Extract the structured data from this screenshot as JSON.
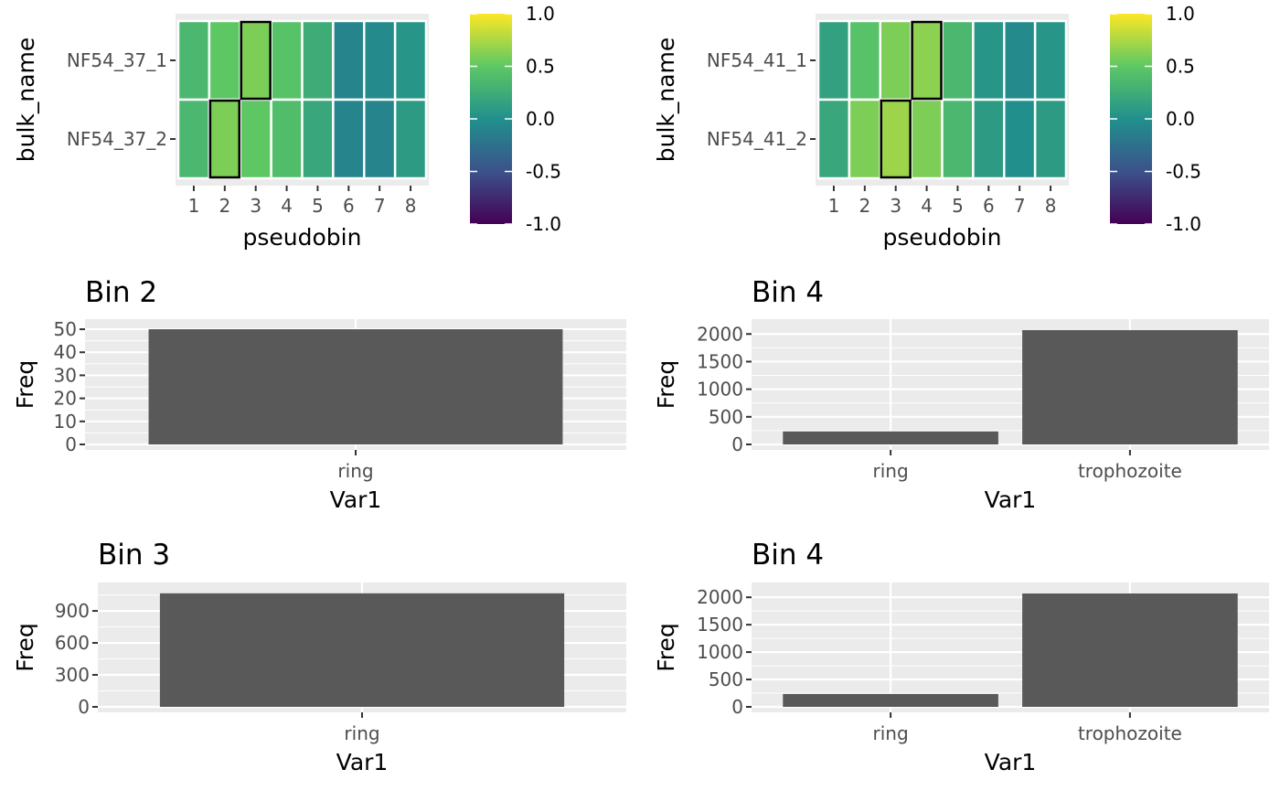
{
  "colors": {
    "panel_bg": "#EBEBEB",
    "gridline": "#FFFFFF",
    "bar_fill": "#595959",
    "tick_text": "#4D4D4D",
    "highlight_border": "#000000",
    "viridis": [
      "#440154",
      "#3B528B",
      "#21908C",
      "#5DC863",
      "#FDE725"
    ]
  },
  "chart_data": [
    {
      "type": "heatmap",
      "xlabel": "pseudobin",
      "ylabel": "bulk_name",
      "x": [
        "1",
        "2",
        "3",
        "4",
        "5",
        "6",
        "7",
        "8"
      ],
      "y": [
        "NF54_37_1",
        "NF54_37_2"
      ],
      "values": [
        [
          0.35,
          0.5,
          0.6,
          0.45,
          0.25,
          -0.1,
          -0.05,
          0.05
        ],
        [
          0.35,
          0.6,
          0.5,
          0.4,
          0.2,
          -0.1,
          -0.1,
          0.1
        ]
      ],
      "highlighted": [
        [
          0,
          2
        ],
        [
          1,
          1
        ]
      ],
      "color_scale": {
        "name": "viridis",
        "min": -1.0,
        "max": 1.0,
        "ticks": [
          "1.0",
          "0.5",
          "0.0",
          "-0.5",
          "-1.0"
        ]
      }
    },
    {
      "type": "heatmap",
      "xlabel": "pseudobin",
      "ylabel": "bulk_name",
      "x": [
        "1",
        "2",
        "3",
        "4",
        "5",
        "6",
        "7",
        "8"
      ],
      "y": [
        "NF54_41_1",
        "NF54_41_2"
      ],
      "values": [
        [
          0.15,
          0.45,
          0.6,
          0.65,
          0.35,
          0.05,
          -0.05,
          0.05
        ],
        [
          0.2,
          0.6,
          0.7,
          0.6,
          0.35,
          0.1,
          0.0,
          0.1
        ]
      ],
      "highlighted": [
        [
          0,
          3
        ],
        [
          1,
          2
        ]
      ],
      "color_scale": {
        "name": "viridis",
        "min": -1.0,
        "max": 1.0,
        "ticks": [
          "1.0",
          "0.5",
          "0.0",
          "-0.5",
          "-1.0"
        ]
      }
    },
    {
      "type": "bar",
      "title": "Bin 2",
      "xlabel": "Var1",
      "ylabel": "Freq",
      "categories": [
        "ring"
      ],
      "values": [
        50
      ],
      "ylim": [
        0,
        52
      ],
      "yticks": [
        "0",
        "10",
        "20",
        "30",
        "40",
        "50"
      ]
    },
    {
      "type": "bar",
      "title": "Bin 4",
      "xlabel": "Var1",
      "ylabel": "Freq",
      "categories": [
        "ring",
        "trophozoite"
      ],
      "values": [
        235,
        2070
      ],
      "ylim": [
        0,
        2170
      ],
      "yticks": [
        "0",
        "500",
        "1000",
        "1500",
        "2000"
      ]
    },
    {
      "type": "bar",
      "title": "Bin 3",
      "xlabel": "Var1",
      "ylabel": "Freq",
      "categories": [
        "ring"
      ],
      "values": [
        1065
      ],
      "ylim": [
        0,
        1115
      ],
      "yticks": [
        "0",
        "300",
        "600",
        "900"
      ]
    },
    {
      "type": "bar",
      "title": "Bin 4",
      "xlabel": "Var1",
      "ylabel": "Freq",
      "categories": [
        "ring",
        "trophozoite"
      ],
      "values": [
        235,
        2070
      ],
      "ylim": [
        0,
        2170
      ],
      "yticks": [
        "0",
        "500",
        "1000",
        "1500",
        "2000"
      ]
    }
  ]
}
